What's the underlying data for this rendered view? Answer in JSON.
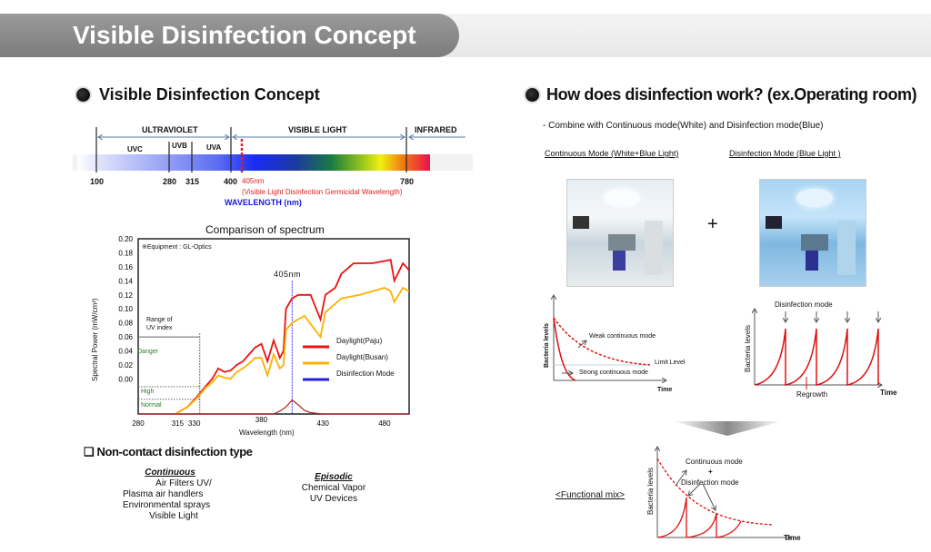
{
  "banner": {
    "title": "Visible Disinfection Concept"
  },
  "left": {
    "heading": "Visible Disinfection Concept",
    "spectrum": {
      "regions": [
        "ULTRAVIOLET",
        "VISIBLE LIGHT",
        "INFRARED"
      ],
      "bands": [
        "UVC",
        "UVB",
        "UVA"
      ],
      "ticks": [
        "100",
        "280",
        "315",
        "400",
        "780"
      ],
      "marker_label": "405nm",
      "marker_note": "(Visible Light Disinfection Germicidal Wavelength)",
      "axis_label": "WAVELENGTH (nm)",
      "colors": {
        "marker": "#e02020",
        "axis_label": "#1a1adc"
      }
    },
    "types": {
      "heading": "Non-contact disinfection type",
      "continuous": {
        "title": "Continuous",
        "items": [
          "Air Filters  UV/",
          "Plasma air handlers",
          "Environmental sprays",
          "Visible Light"
        ]
      },
      "episodic": {
        "title": "Episodic ",
        "items": [
          "Chemical Vapor",
          "UV Devices"
        ]
      }
    }
  },
  "chart_data": {
    "type": "line",
    "title": "Comparison of spectrum",
    "note": "※Equipment : GL-Optics",
    "xlabel": "Wavelength (nm)",
    "ylabel": "Spectral Power (mW/cm²)",
    "xlim": [
      280,
      500
    ],
    "ylim": [
      -0.05,
      0.2
    ],
    "xticks": [
      "280",
      "315",
      "330",
      "380",
      "430",
      "480"
    ],
    "yticks": [
      "0.20",
      "0.18",
      "0.16",
      "0.14",
      "0.12",
      "0.10",
      "0.08",
      "0.06",
      "0.04",
      "0.02",
      "0.00"
    ],
    "marker": {
      "x": 405,
      "label": "405nm",
      "color": "#3a3af0"
    },
    "uv_index": {
      "label_1": "Range of",
      "label_2": "UV index",
      "levels": [
        "Danger",
        "High",
        "Normal"
      ],
      "color": "#2a7a2a"
    },
    "legend_position": "center-right",
    "series": [
      {
        "name": "Daylight(Paju)",
        "color": "#ee1111",
        "x": [
          310,
          320,
          328,
          335,
          340,
          345,
          350,
          355,
          360,
          365,
          370,
          375,
          380,
          385,
          390,
          395,
          398,
          400,
          405,
          410,
          420,
          428,
          432,
          440,
          445,
          455,
          470,
          485,
          488,
          495,
          500
        ],
        "y": [
          -0.05,
          -0.04,
          -0.025,
          -0.01,
          0.0,
          0.015,
          0.01,
          0.012,
          0.02,
          0.025,
          0.035,
          0.045,
          0.05,
          0.025,
          0.055,
          0.03,
          0.04,
          0.1,
          0.115,
          0.12,
          0.12,
          0.085,
          0.12,
          0.13,
          0.15,
          0.165,
          0.165,
          0.17,
          0.14,
          0.165,
          0.155
        ]
      },
      {
        "name": "Daylight(Busan)",
        "color": "#ffb000",
        "x": [
          310,
          320,
          328,
          335,
          340,
          345,
          350,
          355,
          360,
          365,
          370,
          375,
          380,
          385,
          390,
          395,
          398,
          400,
          405,
          415,
          428,
          432,
          445,
          460,
          480,
          485,
          488,
          495,
          500
        ],
        "y": [
          -0.05,
          -0.04,
          -0.027,
          -0.012,
          -0.005,
          0.005,
          0.002,
          0.0,
          0.01,
          0.015,
          0.022,
          0.03,
          0.03,
          0.005,
          0.035,
          0.015,
          0.02,
          0.07,
          0.08,
          0.09,
          0.06,
          0.095,
          0.115,
          0.12,
          0.13,
          0.125,
          0.11,
          0.13,
          0.125
        ]
      },
      {
        "name": "Disinfection Mode",
        "color": "#2020e0",
        "line_color": "#b02828",
        "x": [
          280,
          390,
          396,
          400,
          405,
          410,
          415,
          420,
          430,
          500
        ],
        "y": [
          -0.05,
          -0.05,
          -0.045,
          -0.04,
          -0.03,
          -0.037,
          -0.045,
          -0.048,
          -0.05,
          -0.05
        ]
      }
    ]
  },
  "right": {
    "heading": "How does disinfection work? (ex.Operating room)",
    "subtitle": "- Combine with Continuous mode(White) and Disinfection mode(Blue)",
    "continuous_label": "Continuous Mode (White+Blue Light)",
    "disinfection_label": "Disinfection Mode (Blue Light )",
    "plus": "+",
    "graph1": {
      "ylabel": "Bacteria levels",
      "xlabel": "Time",
      "weak": "Weak continuous mode",
      "limit": "Limit Level",
      "strong": "Strong continuous mode"
    },
    "graph2": {
      "ylabel": "Bacteria levels",
      "xlabel": "Time",
      "top": "Disinfection mode",
      "regrowth": "Regrowth"
    },
    "mix": {
      "label": "<Functional mix>",
      "ylabel": "Bacteria levels",
      "xlabel": "Time",
      "a1": "Continuous mode",
      "a2": "+",
      "a3": "Disinfection mode"
    }
  }
}
